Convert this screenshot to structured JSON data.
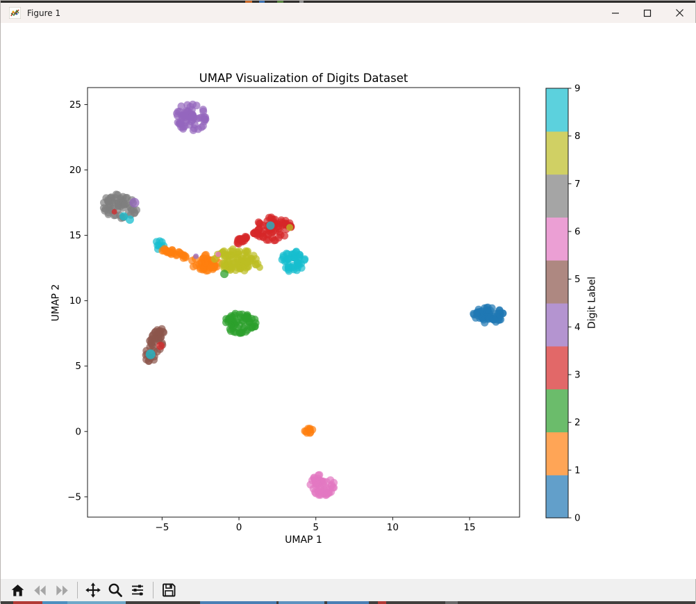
{
  "window": {
    "title": "Figure 1",
    "controls": [
      {
        "name": "minimize"
      },
      {
        "name": "maximize"
      },
      {
        "name": "close"
      }
    ]
  },
  "toolbar": {
    "buttons": [
      {
        "name": "home",
        "enabled": true
      },
      {
        "name": "back",
        "enabled": false
      },
      {
        "name": "forward",
        "enabled": false
      },
      {
        "name": "pan",
        "enabled": true
      },
      {
        "name": "zoom-to-rect",
        "enabled": true
      },
      {
        "name": "configure-subplots",
        "enabled": true
      },
      {
        "name": "save",
        "enabled": true
      }
    ]
  },
  "chart_data": {
    "type": "scatter",
    "title": "UMAP Visualization of Digits Dataset",
    "xlabel": "UMAP 1",
    "ylabel": "UMAP 2",
    "xlim": [
      -9.85,
      18.25
    ],
    "ylim": [
      -6.55,
      26.3
    ],
    "xticks": [
      -5,
      0,
      5,
      10,
      15
    ],
    "yticks": [
      -5,
      0,
      5,
      10,
      15,
      20,
      25
    ],
    "grid": false,
    "marker_alpha": 0.7,
    "palette": {
      "0": "#1f77b4",
      "1": "#ff7f0e",
      "2": "#2ca02c",
      "3": "#d62728",
      "4": "#9467bd",
      "5": "#8c564b",
      "6": "#e377c2",
      "7": "#7f7f7f",
      "8": "#bcbd22",
      "9": "#17becf"
    },
    "colorbar": {
      "label": "Digit Label",
      "range": [
        0,
        9
      ],
      "ticks": [
        0,
        1,
        2,
        3,
        4,
        5,
        6,
        7,
        8,
        9
      ],
      "segment_colors_by_value": [
        "#629fca",
        "#ffa556",
        "#6bbc6b",
        "#e26868",
        "#b494d0",
        "#ae8881",
        "#eb9fd4",
        "#a5a5a5",
        "#d0d064",
        "#5cd1dd"
      ]
    },
    "clusters": [
      {
        "digit": 4,
        "cx": -3.1,
        "cy": 24.05,
        "rx": 1.0,
        "ry": 1.1,
        "rot": 0,
        "n": 60
      },
      {
        "digit": 7,
        "cx": -7.75,
        "cy": 17.25,
        "rx": 1.15,
        "ry": 0.95,
        "rot": -8,
        "n": 60
      },
      {
        "digit": 9,
        "cx": -5.2,
        "cy": 14.25,
        "rx": 0.32,
        "ry": 0.32,
        "rot": 0,
        "n": 8
      },
      {
        "digit": 1,
        "cx": -4.25,
        "cy": 13.6,
        "rx": 0.85,
        "ry": 0.26,
        "rot": -20,
        "n": 26
      },
      {
        "digit": 1,
        "cx": -2.2,
        "cy": 12.9,
        "rx": 0.95,
        "ry": 0.62,
        "rot": -8,
        "n": 48
      },
      {
        "digit": 8,
        "cx": -0.15,
        "cy": 13.1,
        "rx": 1.45,
        "ry": 0.85,
        "rot": -5,
        "n": 80
      },
      {
        "digit": 3,
        "cx": 0.1,
        "cy": 14.6,
        "rx": 0.6,
        "ry": 0.2,
        "rot": 35,
        "n": 16
      },
      {
        "digit": 3,
        "cx": 2.2,
        "cy": 15.5,
        "rx": 1.3,
        "ry": 0.9,
        "rot": 10,
        "n": 70
      },
      {
        "digit": 9,
        "cx": 3.5,
        "cy": 13.0,
        "rx": 0.8,
        "ry": 0.85,
        "rot": 0,
        "n": 45
      },
      {
        "digit": 2,
        "cx": 0.1,
        "cy": 8.25,
        "rx": 1.05,
        "ry": 0.8,
        "rot": -5,
        "n": 55
      },
      {
        "digit": 5,
        "cx": -5.45,
        "cy": 6.6,
        "rx": 0.45,
        "ry": 1.4,
        "rot": -18,
        "n": 45
      },
      {
        "digit": 0,
        "cx": 16.2,
        "cy": 8.9,
        "rx": 1.0,
        "ry": 0.62,
        "rot": 0,
        "n": 55
      },
      {
        "digit": 1,
        "cx": 4.5,
        "cy": 0.05,
        "rx": 0.3,
        "ry": 0.3,
        "rot": 0,
        "n": 10
      },
      {
        "digit": 6,
        "cx": 5.4,
        "cy": -4.1,
        "rx": 0.8,
        "ry": 0.9,
        "rot": 0,
        "n": 50
      }
    ],
    "outliers": [
      {
        "digit": 4,
        "x": -6.8,
        "y": 17.5,
        "r": 7
      },
      {
        "digit": 9,
        "x": -7.5,
        "y": 16.45,
        "r": 6
      },
      {
        "digit": 9,
        "x": -7.1,
        "y": 16.2,
        "r": 6
      },
      {
        "digit": 3,
        "x": -8.1,
        "y": 16.8,
        "r": 4
      },
      {
        "digit": 4,
        "x": -2.8,
        "y": 13.4,
        "r": 4
      },
      {
        "digit": 6,
        "x": -1.35,
        "y": 13.55,
        "r": 4
      },
      {
        "digit": 9,
        "x": 2.05,
        "y": 15.75,
        "r": 6
      },
      {
        "digit": 8,
        "x": 3.3,
        "y": 15.6,
        "r": 5
      },
      {
        "digit": 8,
        "x": 1.35,
        "y": 12.55,
        "r": 5
      },
      {
        "digit": 2,
        "x": -0.95,
        "y": 12.05,
        "r": 6
      },
      {
        "digit": 3,
        "x": -5.1,
        "y": 6.55,
        "r": 6
      },
      {
        "digit": 9,
        "x": -5.75,
        "y": 5.9,
        "r": 7
      }
    ]
  }
}
